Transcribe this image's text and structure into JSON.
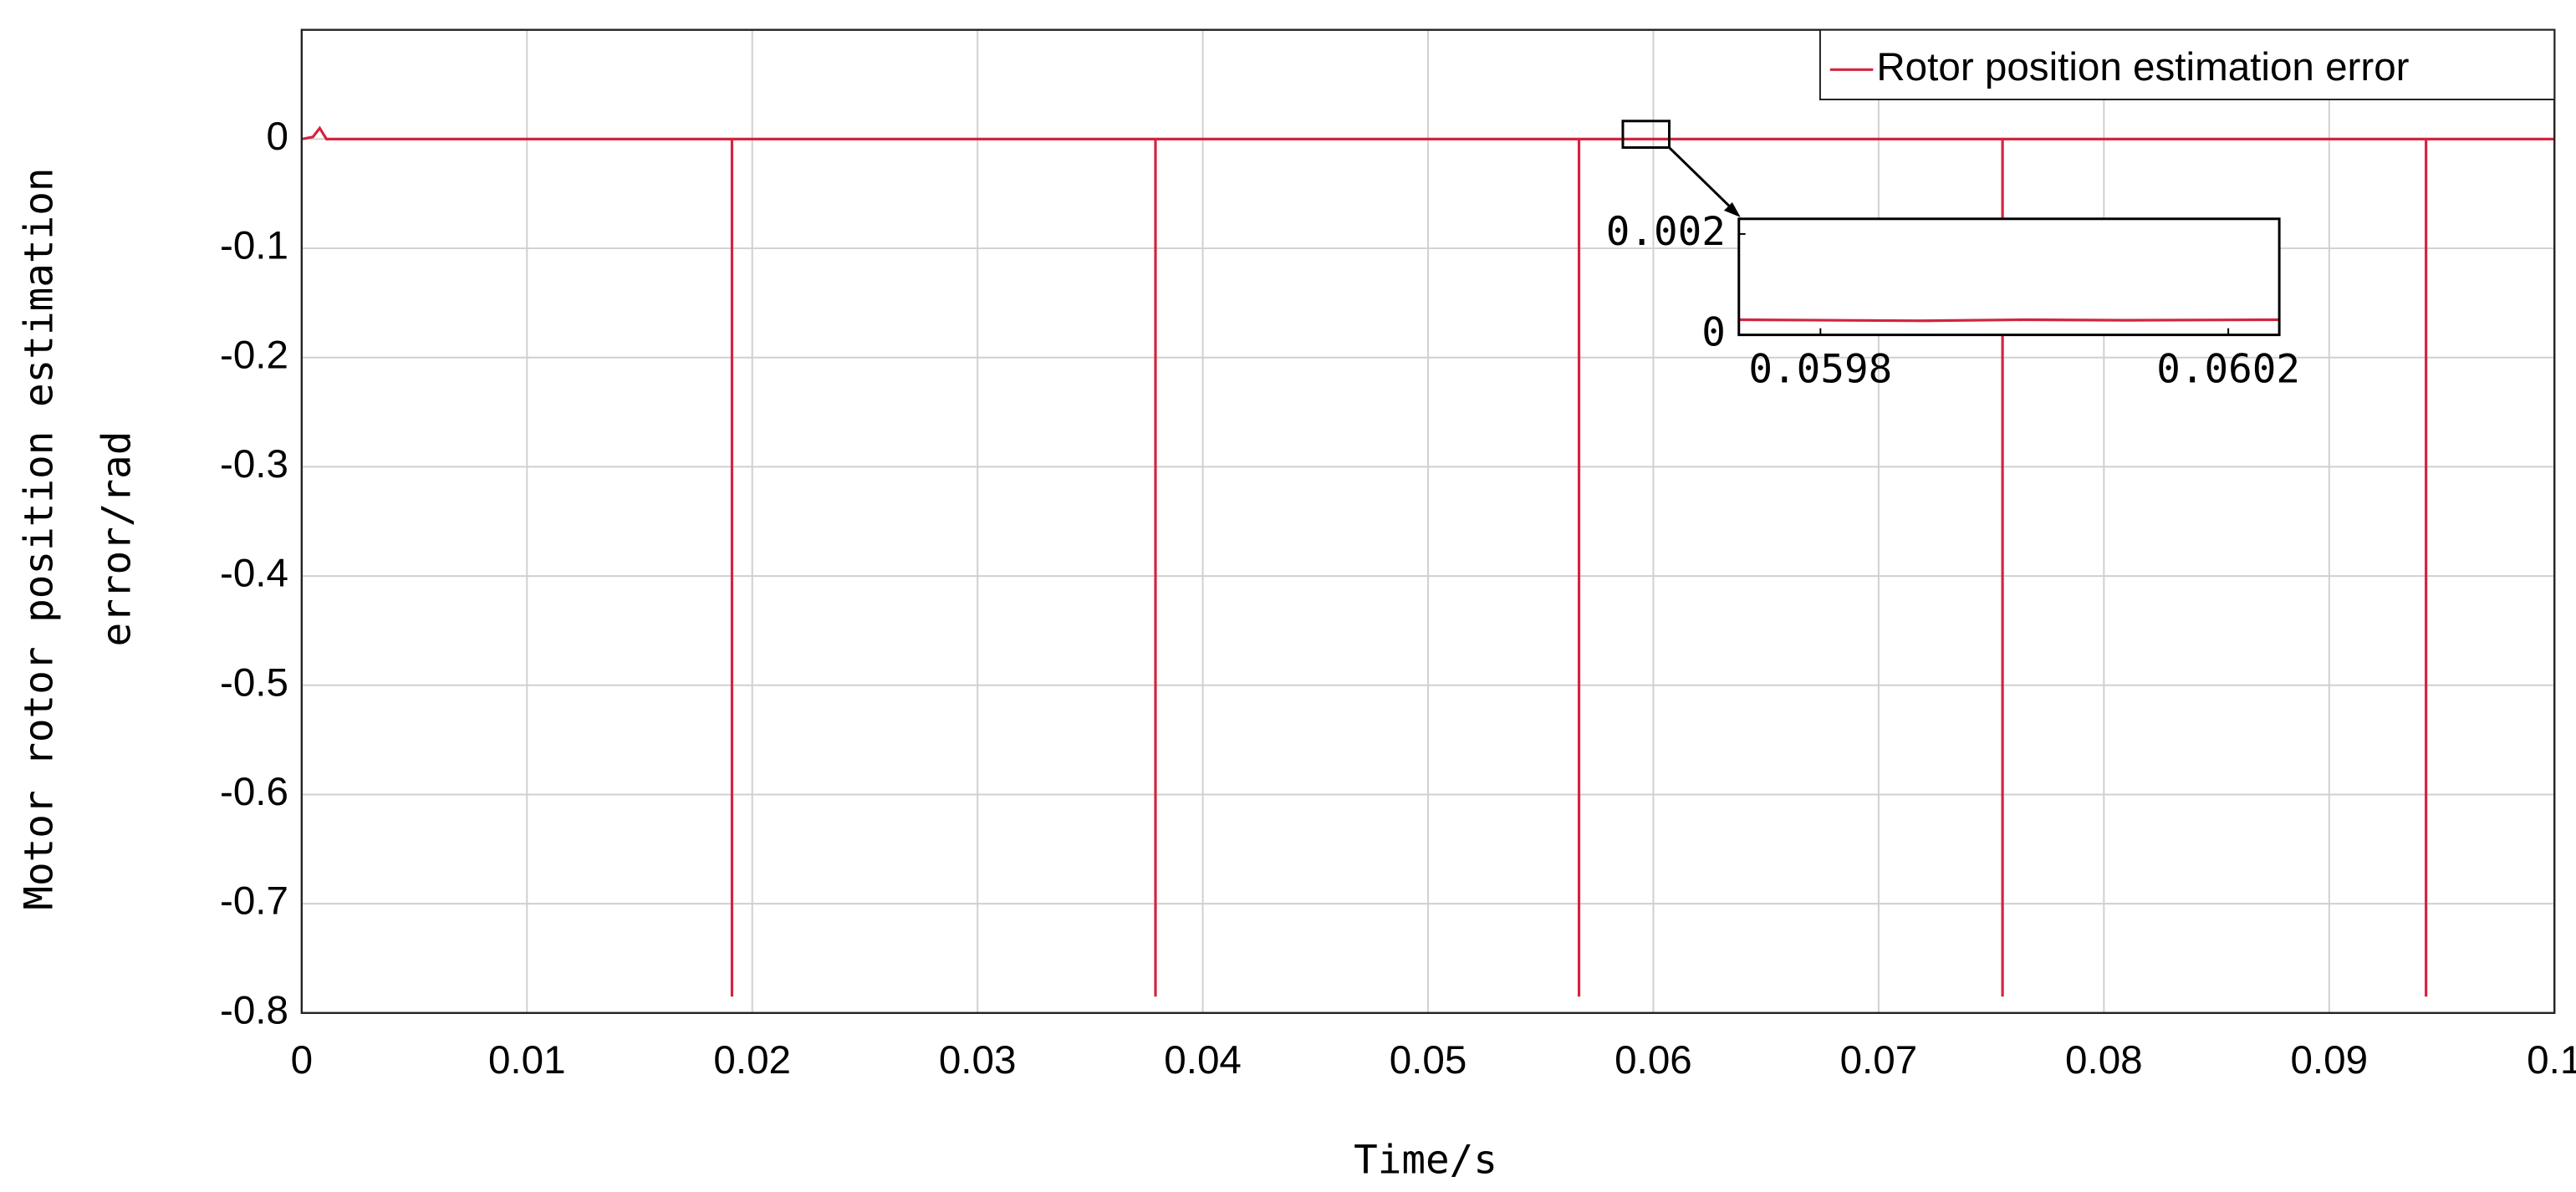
{
  "chart_data": {
    "type": "line",
    "xlabel": "Time/s",
    "ylabel": [
      "Motor rotor position estimation",
      "error/rad"
    ],
    "x": [
      0,
      0.0005,
      0.0008,
      0.0011,
      0.0191,
      0.0191,
      0.0191,
      0.0379,
      0.0379,
      0.0379,
      0.0567,
      0.0567,
      0.0567,
      0.0755,
      0.0755,
      0.0755,
      0.0943,
      0.0943,
      0.0943,
      0.1
    ],
    "series": [
      {
        "name": "Rotor position estimation error",
        "color": "#d2243f",
        "values": [
          0,
          0.002,
          0.01,
          0,
          0,
          -0.785,
          0,
          0,
          -0.785,
          0,
          0,
          -0.785,
          0,
          0,
          -0.785,
          0,
          0,
          -0.785,
          0,
          0
        ]
      }
    ],
    "xlim": [
      0,
      0.1
    ],
    "ylim": [
      -0.8,
      0.1
    ],
    "xticks": [
      0,
      0.01,
      0.02,
      0.03,
      0.04,
      0.05,
      0.06,
      0.07,
      0.08,
      0.09,
      0.1
    ],
    "yticks": [
      -0.8,
      -0.7,
      -0.6,
      -0.5,
      -0.4,
      -0.3,
      -0.2,
      -0.1,
      0
    ],
    "grid": true,
    "legend": "top-right",
    "inset": {
      "xlim": [
        0.05972,
        0.06025
      ],
      "ylim": [
        0,
        0.0023
      ],
      "xticks": [
        0.0598,
        0.0602
      ],
      "yticks": [
        0,
        0.002
      ],
      "x": [
        0.05972,
        0.0599,
        0.06,
        0.0601,
        0.06025
      ],
      "values": [
        0.0003,
        0.00028,
        0.0003,
        0.00029,
        0.0003
      ]
    }
  }
}
